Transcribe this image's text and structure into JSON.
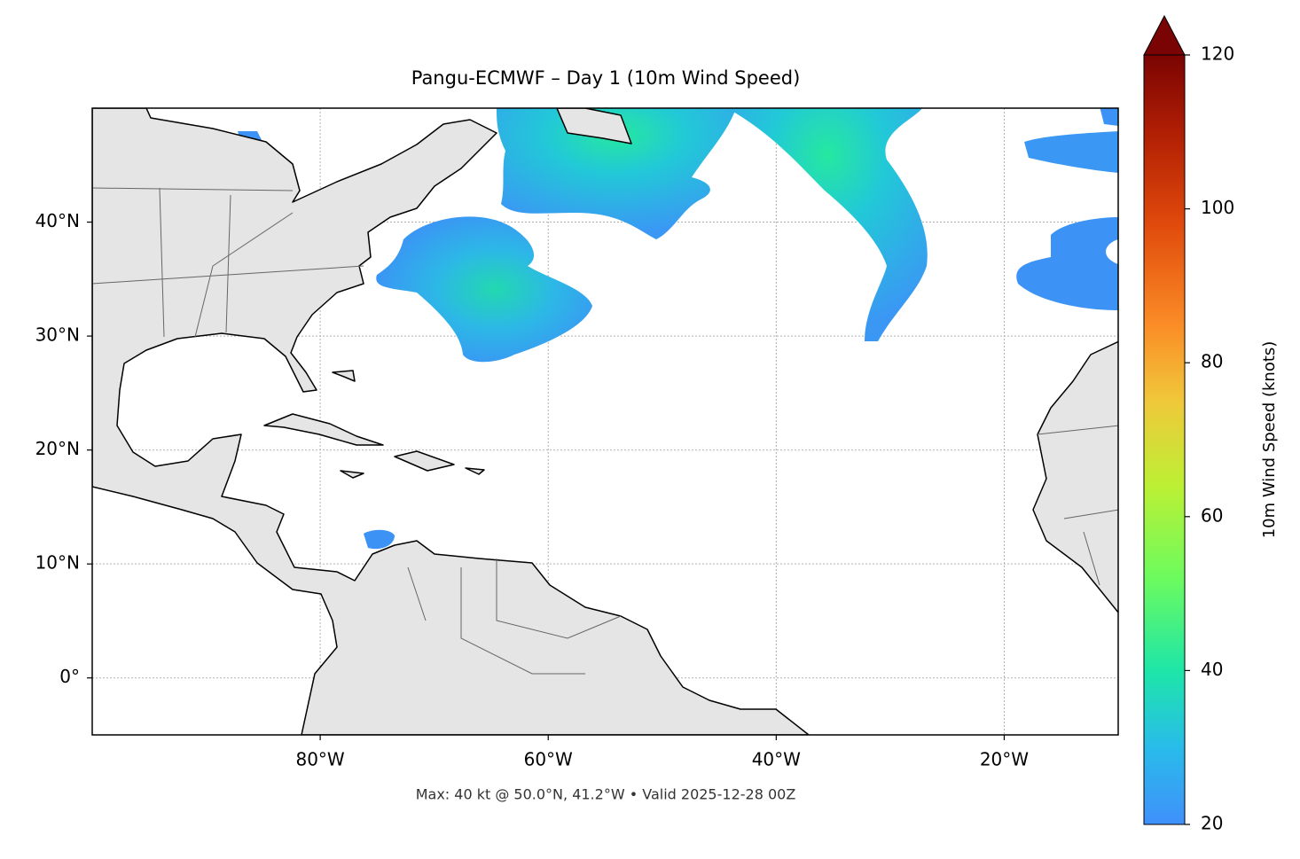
{
  "chart_data": {
    "type": "map",
    "title": "Pangu-ECMWF – Day 1 (10m Wind Speed)",
    "footnote": "Max: 40 kt @ 50.0°N, 41.2°W • Valid 2025-12-28 00Z",
    "xlim": [
      -100,
      -10
    ],
    "ylim": [
      -5,
      50
    ],
    "xticks": [
      {
        "value": -80,
        "label": "80°W"
      },
      {
        "value": -60,
        "label": "60°W"
      },
      {
        "value": -40,
        "label": "40°W"
      },
      {
        "value": -20,
        "label": "20°W"
      }
    ],
    "yticks": [
      {
        "value": 0,
        "label": "0°"
      },
      {
        "value": 10,
        "label": "10°N"
      },
      {
        "value": 20,
        "label": "20°N"
      },
      {
        "value": 30,
        "label": "30°N"
      },
      {
        "value": 40,
        "label": "40°N"
      }
    ],
    "grid": true,
    "colorbar": {
      "label": "10m Wind Speed (knots)",
      "lim": [
        20,
        120
      ],
      "ticks": [
        20,
        40,
        60,
        80,
        100,
        120
      ],
      "colormap": "turbo",
      "extend": "max"
    }
  }
}
